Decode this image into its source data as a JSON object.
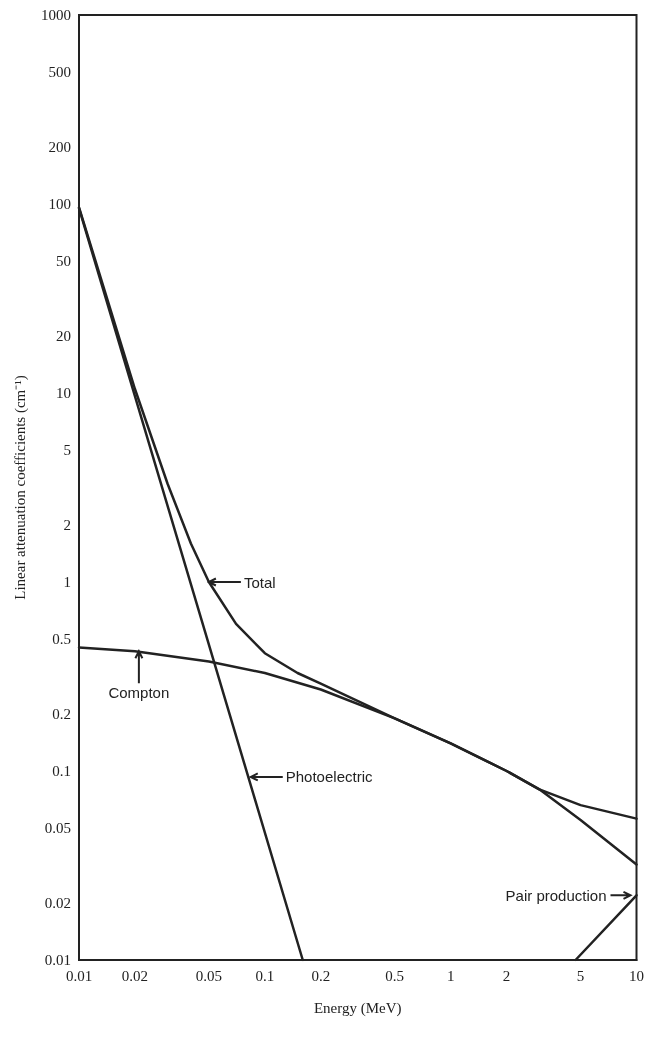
{
  "chart_data": {
    "type": "line",
    "xlabel": "Energy (MeV)",
    "ylabel": "Linear attenuation coefficients (cm⁻¹)",
    "log": "xy",
    "grid": false,
    "marker": "none",
    "line_style": "solid",
    "xlim": [
      0.01,
      10
    ],
    "xticks": [
      0.01,
      0.02,
      0.05,
      0.1,
      0.2,
      0.5,
      1,
      2,
      5,
      10
    ],
    "ylim": [
      0.01,
      1000
    ],
    "yticks": [
      0.01,
      0.02,
      0.05,
      0.1,
      0.2,
      0.5,
      1,
      2,
      5,
      10,
      20,
      50,
      100,
      200,
      500,
      1000
    ],
    "series": [
      {
        "color": "#222222",
        "x": [
          0.01,
          0.02,
          0.03,
          0.04,
          0.05,
          0.07,
          0.1,
          0.15,
          0.2,
          0.5,
          1,
          2,
          3,
          5,
          10
        ],
        "values": [
          96,
          10.5,
          3.3,
          1.6,
          1.0,
          0.6,
          0.42,
          0.33,
          0.29,
          0.19,
          0.14,
          0.1,
          0.08,
          0.066,
          0.056
        ]
      },
      {
        "color": "#222222",
        "x": [
          0.01,
          0.02,
          0.05,
          0.1,
          0.2,
          0.5,
          1,
          2,
          3,
          5,
          10
        ],
        "values": [
          0.45,
          0.43,
          0.38,
          0.33,
          0.27,
          0.19,
          0.14,
          0.1,
          0.08,
          0.055,
          0.032
        ]
      },
      {
        "color": "#222222",
        "x": [
          0.01,
          0.16
        ],
        "values": [
          95,
          0.01
        ]
      },
      {
        "color": "#222222",
        "x": [
          4.7,
          10
        ],
        "values": [
          0.01,
          0.022
        ]
      }
    ],
    "annotations": [
      {
        "text": "Total",
        "x": 0.05,
        "y": 1.0
      },
      {
        "text": "Compton",
        "x": 0.021,
        "y": 0.43
      },
      {
        "text": "Photoelectric",
        "x": 0.084,
        "y": 0.093
      },
      {
        "text": "Pair production",
        "x": 10,
        "y": 0.022
      }
    ]
  }
}
